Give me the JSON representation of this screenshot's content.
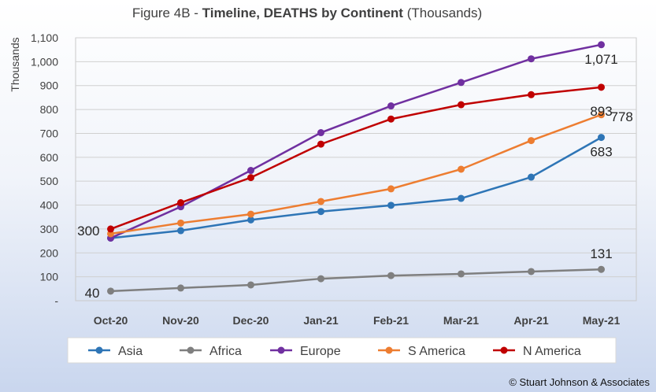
{
  "chart_data": {
    "type": "line",
    "title_prefix": "Figure 4B - ",
    "title_bold": "Timeline, DEATHS by Continent",
    "title_suffix": " (Thousands)",
    "ylabel": "Thousands",
    "xlabel": "",
    "ylim": [
      0,
      1100
    ],
    "ystep": 100,
    "ytick_labels": [
      "-",
      "100",
      "200",
      "300",
      "400",
      "500",
      "600",
      "700",
      "800",
      "900",
      "1,000",
      "1,100"
    ],
    "grid": true,
    "legend_position": "bottom",
    "categories": [
      "Oct-20",
      "Nov-20",
      "Dec-20",
      "Jan-21",
      "Feb-21",
      "Mar-21",
      "Apr-21",
      "May-21"
    ],
    "series": [
      {
        "name": "Asia",
        "color": "#2e75b6",
        "values": [
          262,
          293,
          338,
          373,
          399,
          428,
          517,
          683
        ]
      },
      {
        "name": "Africa",
        "color": "#7f7f7f",
        "values": [
          40,
          53,
          66,
          92,
          105,
          112,
          122,
          131
        ]
      },
      {
        "name": "Europe",
        "color": "#7030a0",
        "values": [
          262,
          393,
          545,
          703,
          815,
          913,
          1012,
          1071
        ]
      },
      {
        "name": "S America",
        "color": "#ed7d31",
        "values": [
          280,
          325,
          362,
          415,
          468,
          550,
          670,
          778
        ]
      },
      {
        "name": "N America",
        "color": "#c00000",
        "values": [
          300,
          410,
          515,
          655,
          760,
          820,
          862,
          893
        ]
      }
    ],
    "annotations": [
      {
        "text": "300",
        "category": "Oct-20",
        "value": 300
      },
      {
        "text": "40",
        "category": "Oct-20",
        "value": 40
      },
      {
        "text": "1,071",
        "category": "May-21",
        "value": 1071
      },
      {
        "text": "893",
        "category": "May-21",
        "value": 893
      },
      {
        "text": "778",
        "category": "May-21",
        "value": 778
      },
      {
        "text": "683",
        "category": "May-21",
        "value": 683
      },
      {
        "text": "131",
        "category": "May-21",
        "value": 131
      }
    ]
  },
  "credit": "© Stuart Johnson & Associates"
}
